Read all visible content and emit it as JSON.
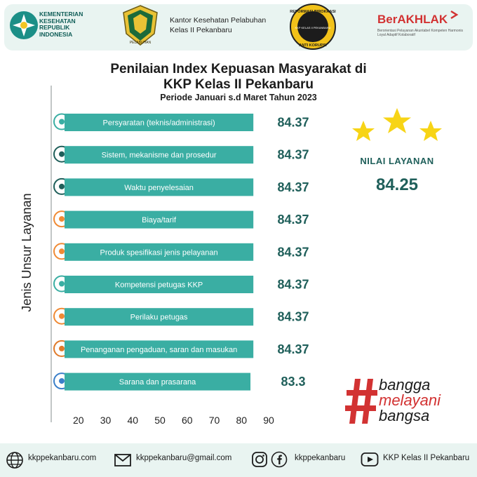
{
  "header": {
    "kemenkes_lines": [
      "KEMENTERIAN",
      "KESEHATAN",
      "REPUBLIK",
      "INDONESIA"
    ],
    "office_lines": [
      "Kantor Kesehatan Pelabuhan",
      "Kelas II Pekanbaru"
    ],
    "emblem_caption": "PELABUHAN",
    "antikorupsi_text": [
      "REFORMASI BIROKRASI",
      "KKP KELAS II PEKANBARU",
      "ANTI KORUPSI"
    ],
    "berakhlak_title": "BerAKHLAK",
    "berakhlak_sub": "Berorientasi Pelayanan Akuntabel Kompeten Harmonis Loyal Adaptif Kolaboratif"
  },
  "chart_data": {
    "type": "bar",
    "orientation": "horizontal",
    "title": "Penilaian Index Kepuasan Masyarakat di KKP Kelas II Pekanbaru",
    "title_lines": [
      "Penilaian Index Kepuasan Masyarakat di",
      "KKP Kelas II Pekanbaru"
    ],
    "subtitle": "Periode Januari s.d Maret Tahun 2023",
    "ylabel": "Jenis Unsur Layanan",
    "xlabel": "",
    "categories": [
      "Persyaratan (teknis/administrasi)",
      "Sistem, mekanisme dan prosedur",
      "Waktu penyelesaian",
      "Biaya/tarif",
      "Produk spesifikasi jenis pelayanan",
      "Kompetensi petugas KKP",
      "Perilaku petugas",
      "Penanganan pengaduan, saran dan masukan",
      "Sarana dan prasarana"
    ],
    "values": [
      84.37,
      84.37,
      84.37,
      84.37,
      84.37,
      84.37,
      84.37,
      84.37,
      83.3
    ],
    "value_labels": [
      "84.37",
      "84.37",
      "84.37",
      "84.37",
      "84.37",
      "84.37",
      "84.37",
      "84.37",
      "83.3"
    ],
    "xticks": [
      20,
      30,
      40,
      50,
      60,
      70,
      80,
      90
    ],
    "xlim": [
      10,
      90
    ],
    "bar_color": "#3aaea3",
    "grid": false
  },
  "summary": {
    "label": "NILAI LAYANAN",
    "value": "84.25",
    "star_color": "#f7d416"
  },
  "slogan": {
    "symbol": "#",
    "lines": [
      "bangga",
      "melayani",
      "bangsa"
    ],
    "colors": [
      "#1c1c1c",
      "#d23232",
      "#1c1c1c"
    ]
  },
  "footer": {
    "website": "kkppekanbaru.com",
    "email": "kkppekanbaru@gmail.com",
    "social": "kkppekanbaru",
    "youtube": "KKP Kelas II Pekanbaru"
  }
}
